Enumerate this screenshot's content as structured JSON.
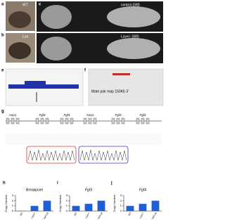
{
  "panels": {
    "a": {
      "letter": "a",
      "label": "WT"
    },
    "b": {
      "letter": "b",
      "label": "Lsa"
    },
    "c": {
      "letter": "c",
      "top_label": "control (0/8)",
      "bottom_label": "Lsa+/- (8/8)"
    },
    "e": {
      "letter": "e"
    },
    "f": {
      "letter": "f",
      "label": "Mate pair map 150Kb 3'"
    },
    "g": {
      "letter": "g",
      "genes": [
        "Ano1",
        "Fgf3",
        "Fgf4",
        "Ano1",
        "Fgf3",
        "Fgf4"
      ]
    }
  },
  "chart_data": [
    {
      "type": "bar",
      "letter": "h",
      "title": "Breakpoint",
      "y_label": "Copy Number",
      "categories": [
        "WT",
        "Lsa+/-",
        "Lsa/Lsa"
      ],
      "values": [
        0.05,
        1.0,
        2.0
      ],
      "color": "#1f5fd6",
      "ylim": [
        0,
        3
      ],
      "yticks": [
        0,
        1,
        2,
        3
      ]
    },
    {
      "type": "bar",
      "letter": "i",
      "title": "Fgf3",
      "y_label": "Copy Number",
      "categories": [
        "WT",
        "Lsa+/-",
        "Lsa/Lsa"
      ],
      "values": [
        1.0,
        1.4,
        2.0
      ],
      "color": "#1f5fd6",
      "ylim": [
        0,
        3
      ],
      "yticks": [
        0,
        1,
        2,
        3
      ]
    },
    {
      "type": "bar",
      "letter": "j",
      "title": "Fgf4",
      "y_label": "Copy Number",
      "categories": [
        "WT",
        "Lsa+/-",
        "Lsa/Lsa"
      ],
      "values": [
        1.0,
        1.4,
        2.0
      ],
      "color": "#1f5fd6",
      "ylim": [
        0,
        3
      ],
      "yticks": [
        0,
        1,
        2,
        3
      ]
    }
  ]
}
